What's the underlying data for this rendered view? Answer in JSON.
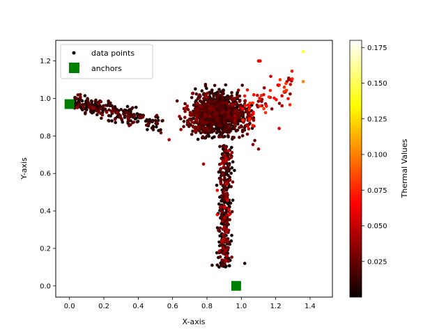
{
  "chart_data": {
    "type": "scatter",
    "title": "",
    "xlabel": "X-axis",
    "ylabel": "Y-axis",
    "xlim": [
      -0.08,
      1.53
    ],
    "ylim": [
      -0.06,
      1.31
    ],
    "x_ticks": [
      0.0,
      0.2,
      0.4,
      0.6,
      0.8,
      1.0,
      1.2,
      1.4
    ],
    "x_tick_labels": [
      "0.0",
      "0.2",
      "0.4",
      "0.6",
      "0.8",
      "1.0",
      "1.2",
      "1.4"
    ],
    "y_ticks": [
      0.0,
      0.2,
      0.4,
      0.6,
      0.8,
      1.0,
      1.2
    ],
    "y_tick_labels": [
      "0.0",
      "0.2",
      "0.4",
      "0.6",
      "0.8",
      "1.0",
      "1.2"
    ],
    "grid": false,
    "legend": {
      "placement": "top-left",
      "entries": [
        "data points",
        "anchors"
      ]
    },
    "colorbar": {
      "label": "Thermal Values",
      "colormap": "hot",
      "range": [
        0.0,
        0.18
      ],
      "ticks": [
        0.025,
        0.05,
        0.075,
        0.1,
        0.125,
        0.15,
        0.175
      ],
      "tick_labels": [
        "0.025",
        "0.050",
        "0.075",
        "0.100",
        "0.125",
        "0.150",
        "0.175"
      ]
    },
    "series": [
      {
        "name": "data points",
        "marker": "dot",
        "clusters": [
          {
            "label": "left arm",
            "x_range": [
              0.03,
              0.55
            ],
            "y_range": [
              0.84,
              0.99
            ],
            "value_range": [
              0.0,
              0.04
            ]
          },
          {
            "label": "center blob",
            "x_range": [
              0.6,
              1.1
            ],
            "y_range": [
              0.75,
              1.1
            ],
            "value_range": [
              0.0,
              0.05
            ]
          },
          {
            "label": "lower stem",
            "x_range": [
              0.83,
              0.98
            ],
            "y_range": [
              0.1,
              0.75
            ],
            "value_range": [
              0.0,
              0.06
            ]
          },
          {
            "label": "upper-right arm",
            "x_range": [
              1.0,
              1.3
            ],
            "y_range": [
              0.84,
              1.21
            ],
            "value_range": [
              0.03,
              0.08
            ]
          }
        ],
        "points": [
          {
            "x": 1.36,
            "y": 1.25,
            "value": 0.14
          },
          {
            "x": 1.36,
            "y": 1.09,
            "value": 0.1
          },
          {
            "x": 1.26,
            "y": 1.08,
            "value": 0.08
          },
          {
            "x": 1.25,
            "y": 1.06,
            "value": 0.075
          },
          {
            "x": 1.1,
            "y": 1.2,
            "value": 0.055
          },
          {
            "x": 1.11,
            "y": 1.2,
            "value": 0.06
          },
          {
            "x": 0.58,
            "y": 0.78,
            "value": 0.045
          },
          {
            "x": 0.83,
            "y": 0.11,
            "value": 0.01
          },
          {
            "x": 1.02,
            "y": 0.12,
            "value": 0.01
          },
          {
            "x": 1.22,
            "y": 0.84,
            "value": 0.05
          },
          {
            "x": 1.1,
            "y": 0.73,
            "value": 0.03
          },
          {
            "x": 0.78,
            "y": 0.65,
            "value": 0.04
          },
          {
            "x": 0.86,
            "y": 0.51,
            "value": 0.06
          },
          {
            "x": 0.86,
            "y": 0.38,
            "value": 0.06
          },
          {
            "x": 0.93,
            "y": 0.38,
            "value": 0.06
          }
        ]
      },
      {
        "name": "anchors",
        "marker": "square",
        "color": "#008000",
        "points": [
          {
            "x": 0.0,
            "y": 0.97
          },
          {
            "x": 0.97,
            "y": 0.0
          }
        ]
      }
    ]
  },
  "colors": {
    "anchor": "#008000",
    "axis": "#000000"
  }
}
